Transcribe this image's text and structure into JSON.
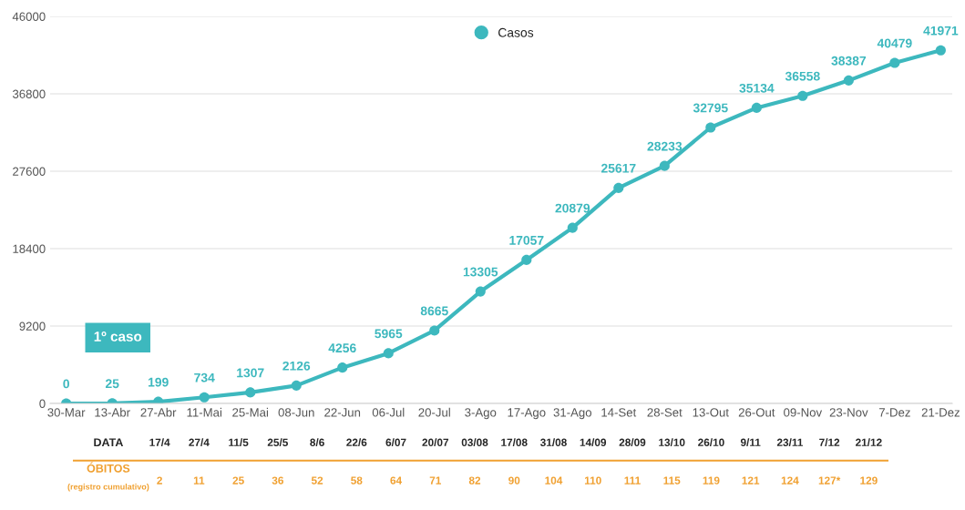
{
  "chart_data": [
    {
      "type": "line",
      "categories": [
        "30-Mar",
        "13-Abr",
        "27-Abr",
        "11-Mai",
        "25-Mai",
        "08-Jun",
        "22-Jun",
        "06-Jul",
        "20-Jul",
        "3-Ago",
        "17-Ago",
        "31-Ago",
        "14-Set",
        "28-Set",
        "13-Out",
        "26-Out",
        "09-Nov",
        "23-Nov",
        "7-Dez",
        "21-Dez"
      ],
      "series": [
        {
          "name": "Casos",
          "color": "#3db8be",
          "values": [
            0,
            25,
            199,
            734,
            1307,
            2126,
            4256,
            5965,
            8665,
            13305,
            17057,
            20879,
            25617,
            28233,
            32795,
            35134,
            36558,
            38387,
            40479,
            41971
          ]
        }
      ],
      "ylim": [
        0,
        46000
      ],
      "yticks": [
        0,
        9200,
        18400,
        27600,
        36800,
        46000
      ],
      "grid": "y",
      "legend": "top",
      "marker": "circle",
      "data_labels": true,
      "annotations": [
        "1º caso"
      ]
    },
    {
      "type": "other",
      "xlabel": "DATA",
      "ylabel": "ÓBITOS",
      "annotations": [
        "(registro cumulativo)"
      ],
      "categories": [
        "17/4",
        "27/4",
        "11/5",
        "25/5",
        "8/6",
        "22/6",
        "6/07",
        "20/07",
        "03/08",
        "17/08",
        "31/08",
        "14/09",
        "28/09",
        "13/10",
        "26/10",
        "9/11",
        "23/11",
        "7/12",
        "21/12"
      ],
      "value_labels": [
        "2",
        "11",
        "25",
        "36",
        "52",
        "58",
        "64",
        "71",
        "82",
        "90",
        "104",
        "110",
        "111",
        "115",
        "119",
        "121",
        "124",
        "127*",
        "129"
      ],
      "color": "#f0a030"
    }
  ]
}
